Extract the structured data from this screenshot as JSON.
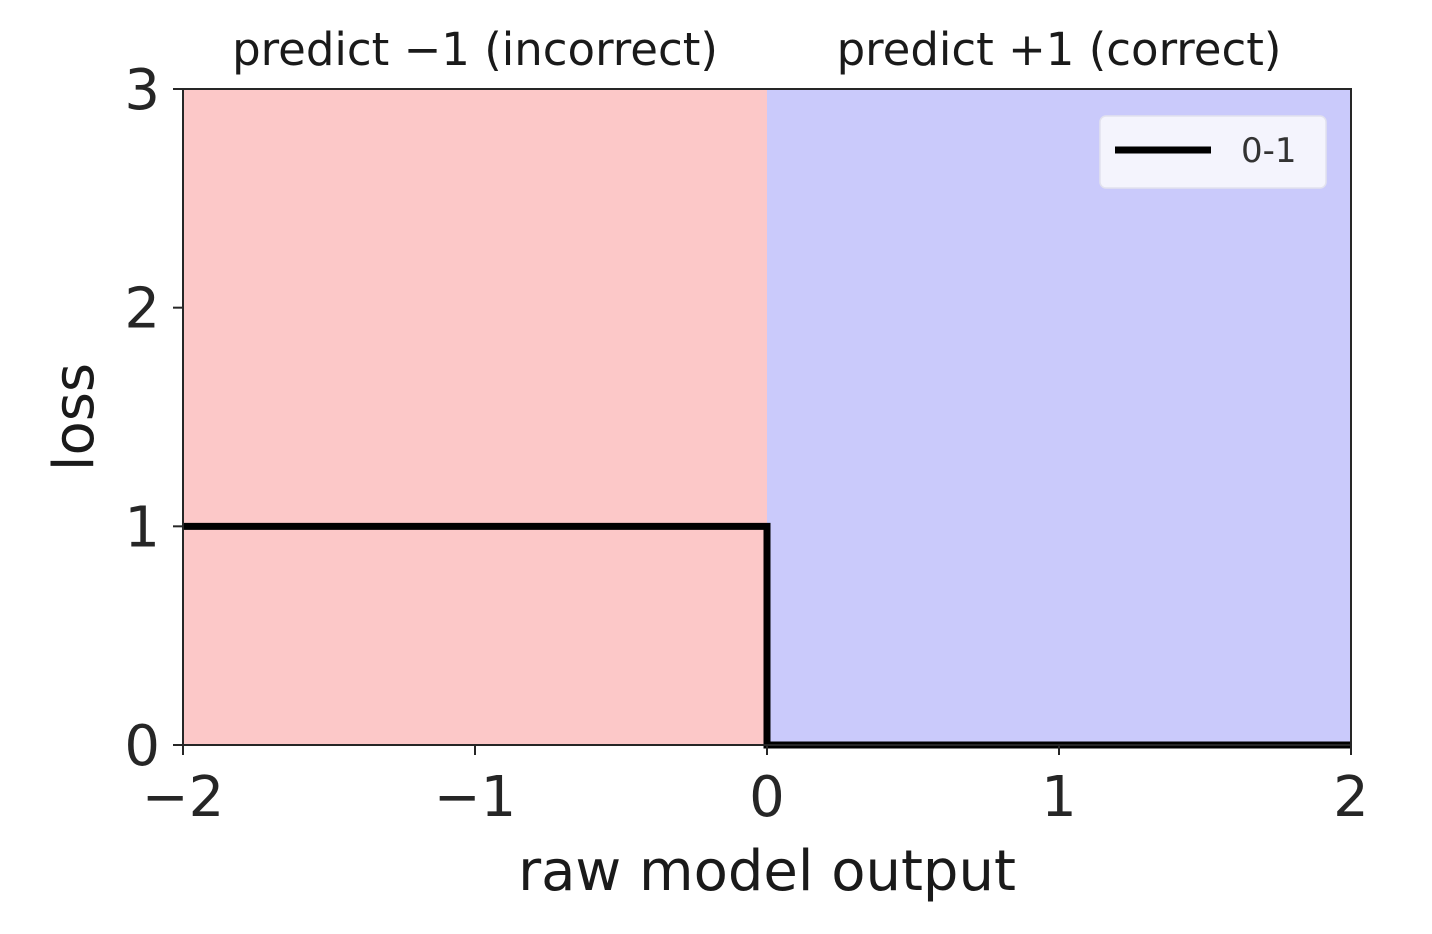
{
  "chart_data": {
    "type": "line",
    "xlabel": "raw model output",
    "ylabel": "loss",
    "xlim": [
      -2,
      2
    ],
    "ylim": [
      0,
      3
    ],
    "x_ticks": [
      -2,
      -1,
      0,
      1,
      2
    ],
    "x_tick_labels": [
      "−2",
      "−1",
      "0",
      "1",
      "2"
    ],
    "y_ticks": [
      0,
      1,
      2,
      3
    ],
    "y_tick_labels": [
      "0",
      "1",
      "2",
      "3"
    ],
    "regions": [
      {
        "label": "predict −1 (incorrect)",
        "x_range": [
          -2,
          0
        ],
        "color": "#fcc8c8"
      },
      {
        "label": "predict +1 (correct)",
        "x_range": [
          0,
          2
        ],
        "color": "#cacafb"
      }
    ],
    "series": [
      {
        "name": "0-1",
        "color": "#000000",
        "x": [
          -2,
          0,
          0,
          2
        ],
        "y": [
          1,
          1,
          0,
          0
        ]
      }
    ],
    "legend_position": "top-right",
    "grid": false
  }
}
